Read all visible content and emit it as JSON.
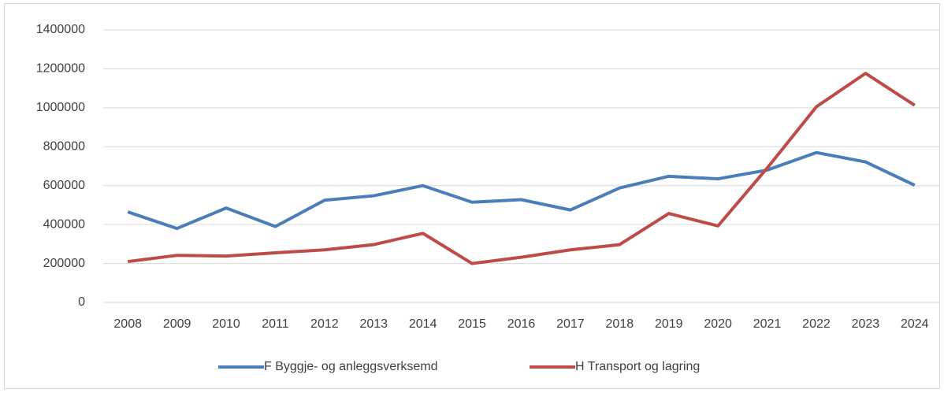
{
  "chart_data": {
    "type": "line",
    "categories": [
      "2008",
      "2009",
      "2010",
      "2011",
      "2012",
      "2013",
      "2014",
      "2015",
      "2016",
      "2017",
      "2018",
      "2019",
      "2020",
      "2021",
      "2022",
      "2023",
      "2024"
    ],
    "series": [
      {
        "name": "F Byggje- og anleggsverksemd",
        "color": "#4a7ebb",
        "values": [
          465000,
          380000,
          485000,
          390000,
          525000,
          548000,
          600000,
          515000,
          528000,
          475000,
          588000,
          648000,
          635000,
          680000,
          770000,
          722000,
          602000
        ]
      },
      {
        "name": "H Transport og lagring",
        "color": "#be4b48",
        "values": [
          210000,
          242000,
          238000,
          255000,
          270000,
          297000,
          355000,
          200000,
          232000,
          270000,
          297000,
          457000,
          393000,
          690000,
          1005000,
          1177000,
          1013000
        ]
      }
    ],
    "ylim": [
      0,
      1400000
    ],
    "yticks": [
      0,
      200000,
      400000,
      600000,
      800000,
      1000000,
      1200000,
      1400000
    ],
    "grid": true,
    "legend": "bottom"
  }
}
